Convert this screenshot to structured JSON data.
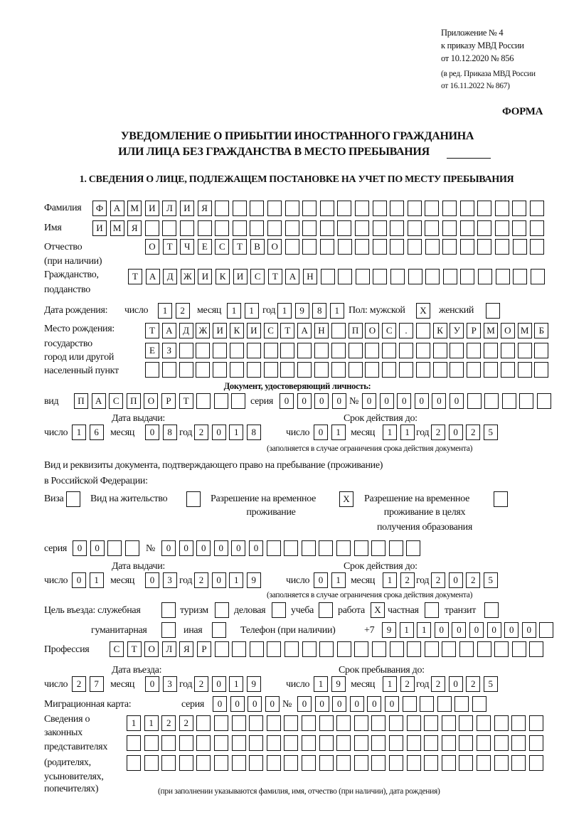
{
  "header": {
    "appendix": [
      "Приложение № 4",
      "к приказу МВД России",
      "от 10.12.2020 № 856"
    ],
    "edition": [
      "(в ред. Приказа МВД России",
      "от 16.11.2022 № 867)"
    ],
    "form_label": "ФОРМА",
    "title": [
      "УВЕДОМЛЕНИЕ О ПРИБЫТИИ ИНОСТРАННОГО ГРАЖДАНИНА",
      "ИЛИ ЛИЦА БЕЗ ГРАЖДАНСТВА В МЕСТО ПРЕБЫВАНИЯ"
    ],
    "section": "1. СВЕДЕНИЯ О ЛИЦЕ, ПОДЛЕЖАЩЕМ ПОСТАНОВКЕ НА УЧЕТ ПО МЕСТУ ПРЕБЫВАНИЯ"
  },
  "labels": {
    "surname": "Фамилия",
    "name": "Имя",
    "patronymic": [
      "Отчество",
      "(при наличии)"
    ],
    "citizenship": [
      "Гражданство,",
      "подданство"
    ],
    "birth_date": "Дата рождения:",
    "day": "число",
    "month": "месяц",
    "year": "год",
    "sex_male": "Пол: мужской",
    "sex_female": "женский",
    "birth_place": [
      "Место рождения:",
      "государство",
      "город или другой",
      "населенный пункт"
    ],
    "identity_doc": "Документ, удостоверяющий личность:",
    "kind": "вид",
    "series": "серия",
    "number": "№",
    "issue_date": "Дата выдачи:",
    "valid_until": "Срок действия до:",
    "valid_note": "(заполняется в случае ограничения срока действия документа)",
    "right_doc": [
      "Вид и реквизиты документа, подтверждающего право на пребывание (проживание)",
      "в Российской Федерации:"
    ],
    "visa": "Виза",
    "residence_permit": "Вид на жительство",
    "temp_residence": [
      "Разрешение на временное",
      "проживание"
    ],
    "temp_residence_edu": [
      "Разрешение на временное",
      "проживание в целях",
      "получения образования"
    ],
    "purpose": "Цель въезда: служебная",
    "tourism": "туризм",
    "business": "деловая",
    "study": "учеба",
    "work": "работа",
    "private": "частная",
    "transit": "транзит",
    "humanitarian": "гуманитарная",
    "other": "иная",
    "phone": "Телефон (при наличии)",
    "phone_prefix": "+7",
    "profession": "Профессия",
    "entry_date": "Дата въезда:",
    "stay_until": "Срок пребывания до:",
    "migration_card": "Миграционная карта:",
    "representatives": [
      "Сведения о",
      "законных",
      "представителях",
      "(родителях,",
      "усыновителях,",
      "попечителях)"
    ],
    "representatives_note": "(при заполнении указываются фамилия, имя, отчество (при наличии), дата рождения)"
  },
  "fields": {
    "surname": "ФАМИЛИЯ",
    "name": "ИМЯ",
    "patronymic": "ОТЧЕСТВО",
    "citizenship": "ТАДЖИКИСТАН",
    "birth_day": "12",
    "birth_month": "11",
    "birth_year": "1981",
    "sex_male": "X",
    "sex_female": "",
    "birth_place_1": "ТАДЖИКИСТАН ПОС. КУРМОМБ",
    "birth_place_2": "ЕЗ",
    "birth_place_3": "",
    "id_kind": "ПАСПОРТ",
    "id_series": "0000",
    "id_number": "000000",
    "id_issue_day": "16",
    "id_issue_month": "08",
    "id_issue_year": "2018",
    "id_valid_day": "01",
    "id_valid_month": "11",
    "id_valid_year": "2025",
    "visa": "",
    "residence_permit": "",
    "temp_residence": "X",
    "temp_residence_edu": "",
    "rd_series": "00",
    "rd_number": "000000",
    "rd_issue_day": "01",
    "rd_issue_month": "03",
    "rd_issue_year": "2019",
    "rd_valid_day": "01",
    "rd_valid_month": "12",
    "rd_valid_year": "2025",
    "purpose_official": "",
    "purpose_tourism": "",
    "purpose_business": "",
    "purpose_study": "",
    "purpose_work": "X",
    "purpose_private": "",
    "purpose_transit": "",
    "purpose_humanitarian": "",
    "purpose_other": "",
    "phone": "911000000",
    "profession": "СТОЛЯР",
    "entry_day": "27",
    "entry_month": "03",
    "entry_year": "2019",
    "stay_day": "19",
    "stay_month": "12",
    "stay_year": "2025",
    "mc_series": "0000",
    "mc_number": "000000",
    "representatives_1": "1122",
    "representatives_2": "",
    "representatives_3": ""
  }
}
